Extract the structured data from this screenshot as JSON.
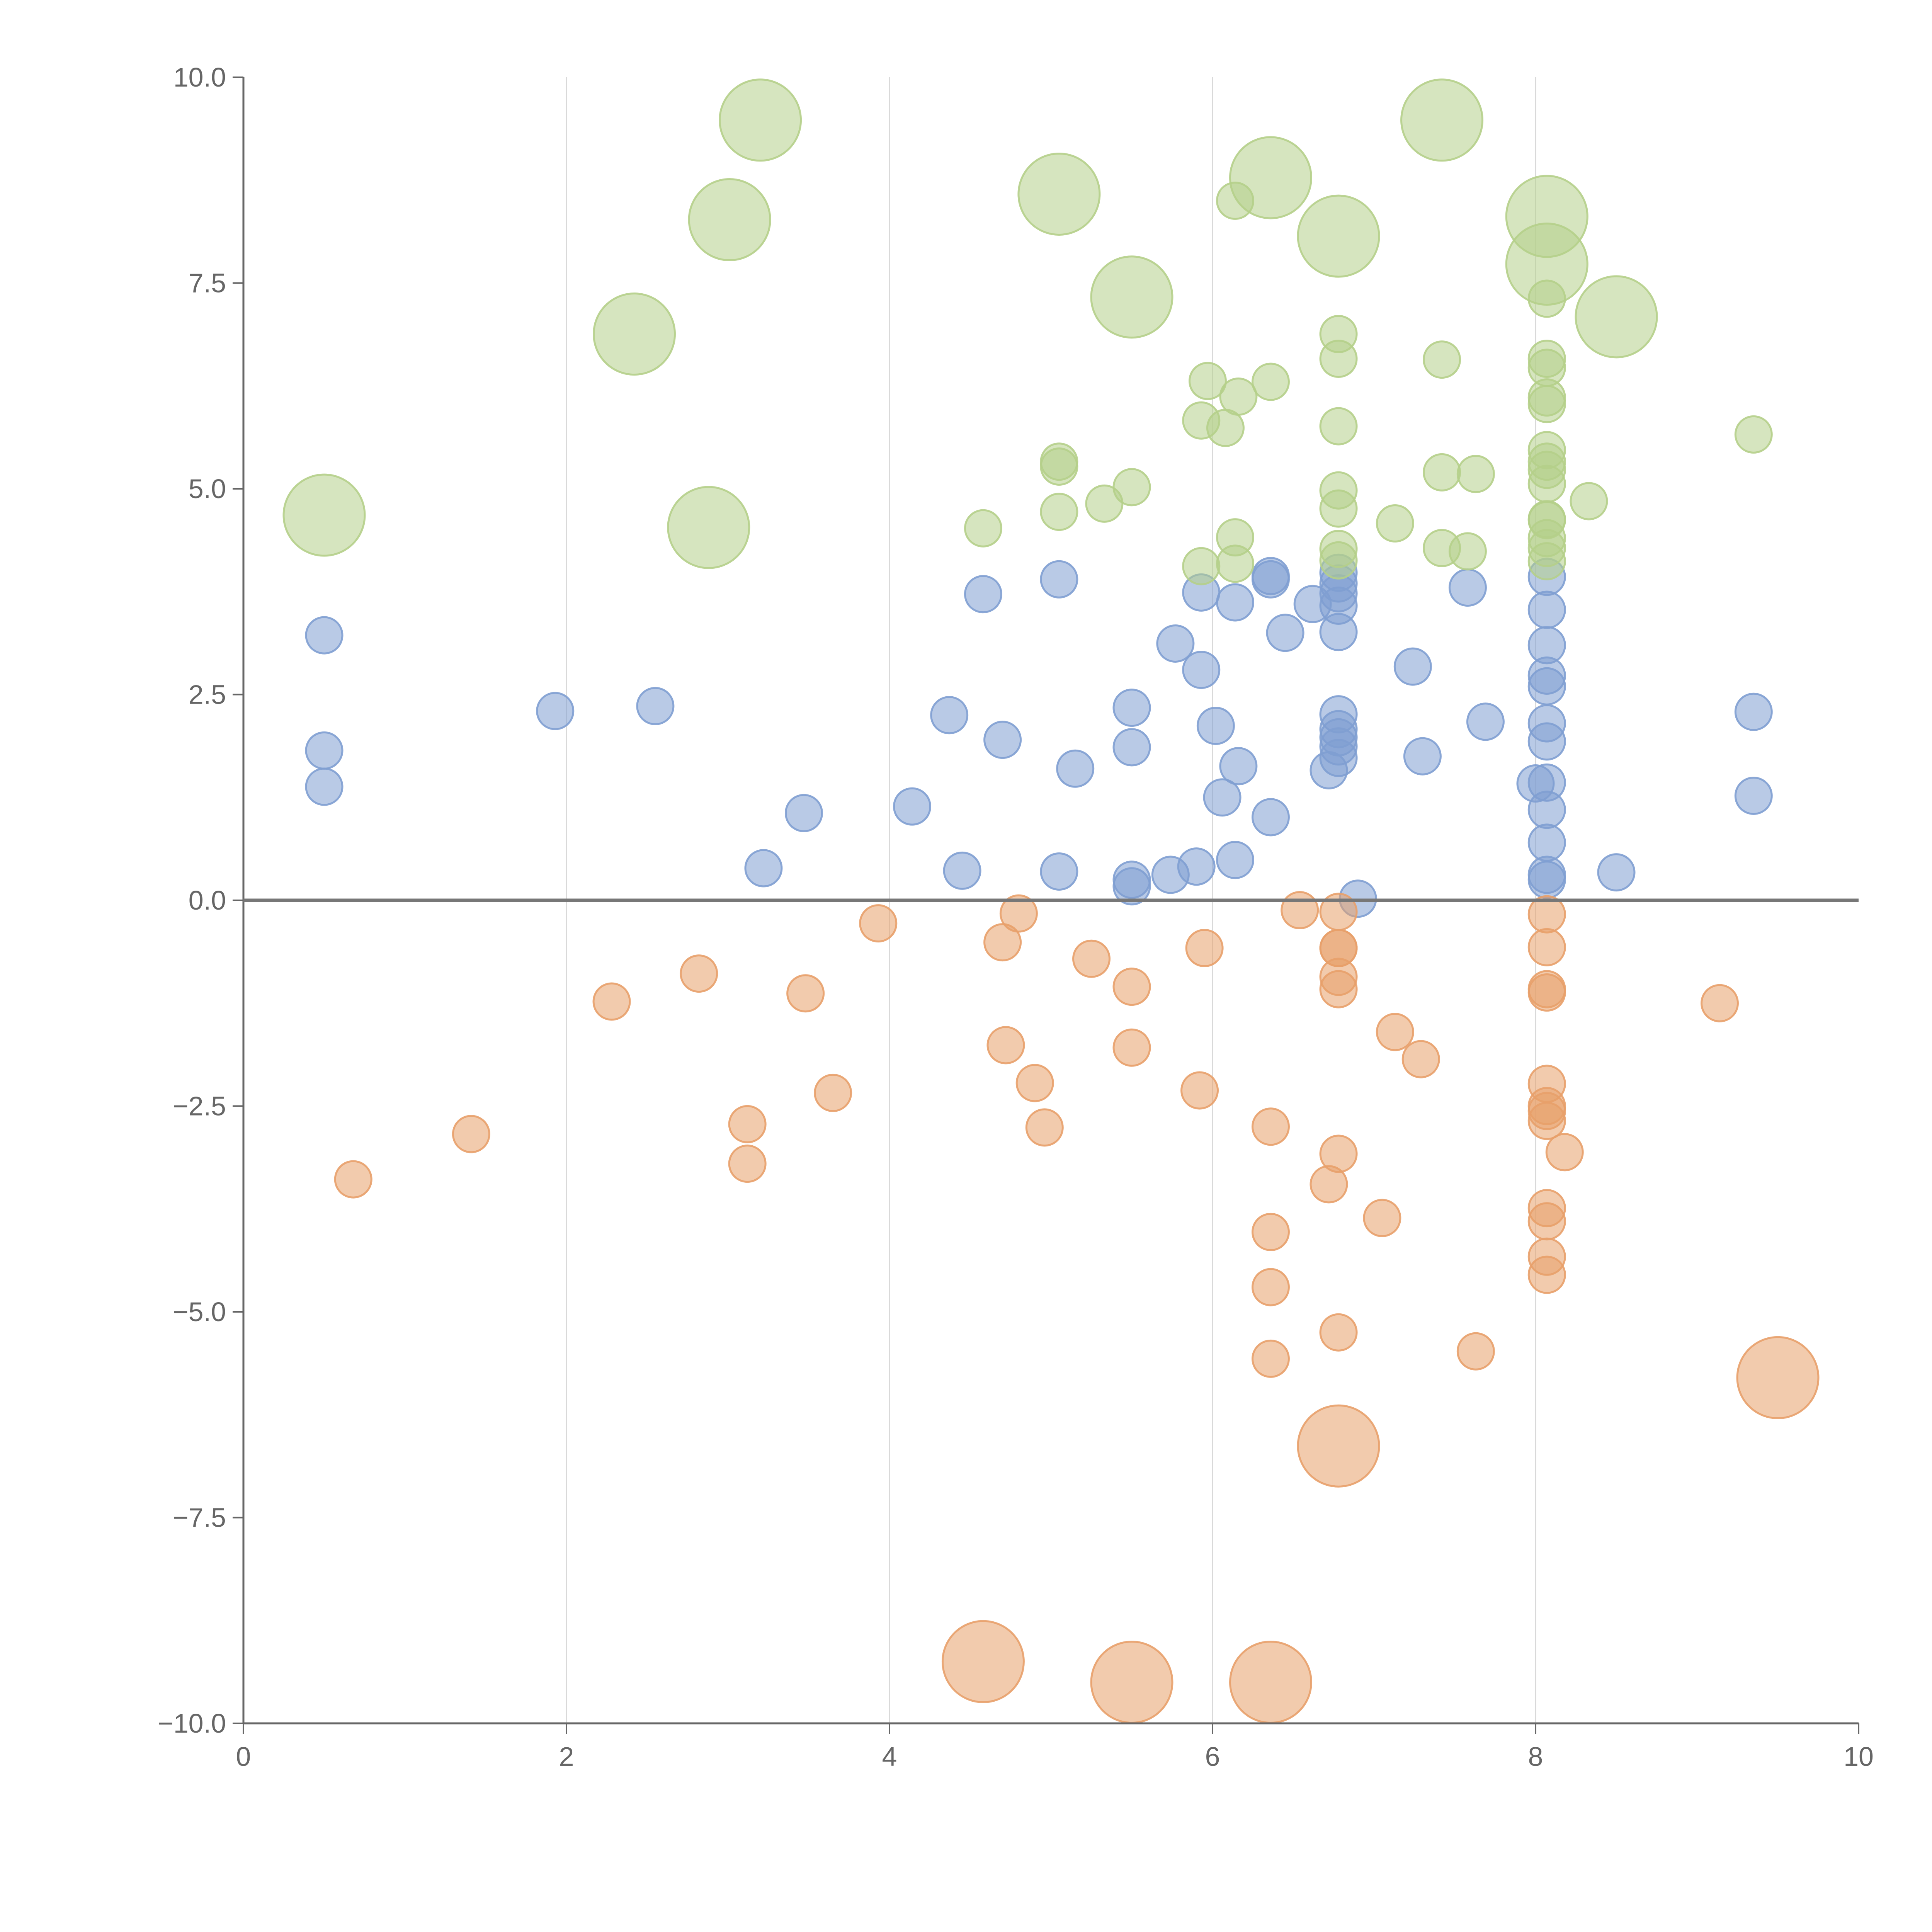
{
  "chart_data": {
    "type": "scatter",
    "title": "",
    "xlabel": "",
    "ylabel": "",
    "xlim": [
      0,
      10
    ],
    "ylim": [
      -10,
      10
    ],
    "x_ticks": [
      "0",
      "2",
      "4",
      "6",
      "8",
      "10"
    ],
    "y_ticks": [
      "10.0",
      "7.5",
      "5.0",
      "2.5",
      "0.0",
      "−2.5",
      "−5.0",
      "−7.5",
      "−10.0"
    ],
    "x_grid": [
      2,
      4,
      6,
      8
    ],
    "colors": {
      "blue": "#7f9fd2",
      "orange": "#e8a06a",
      "green": "#b5cf8a",
      "axis": "#666666"
    },
    "series": [
      {
        "name": "blue",
        "color": "#7f9fd2",
        "points": [
          [
            0.5,
            3.22
          ],
          [
            0.5,
            1.82
          ],
          [
            0.5,
            1.38
          ],
          [
            1.93,
            2.3
          ],
          [
            2.55,
            2.36
          ],
          [
            3.22,
            0.39
          ],
          [
            3.47,
            1.06
          ],
          [
            4.14,
            1.14
          ],
          [
            4.37,
            2.25
          ],
          [
            4.45,
            0.36
          ],
          [
            4.58,
            3.72
          ],
          [
            4.7,
            1.95
          ],
          [
            5.05,
            3.9
          ],
          [
            5.05,
            0.35
          ],
          [
            5.15,
            1.6
          ],
          [
            5.5,
            2.34
          ],
          [
            5.5,
            1.86
          ],
          [
            5.5,
            0.25
          ],
          [
            5.5,
            0.17
          ],
          [
            5.74,
            0.31
          ],
          [
            5.77,
            3.12
          ],
          [
            5.9,
            0.41
          ],
          [
            5.93,
            3.74
          ],
          [
            5.93,
            2.8
          ],
          [
            6.02,
            2.12
          ],
          [
            6.06,
            1.25
          ],
          [
            6.14,
            3.62
          ],
          [
            6.14,
            0.49
          ],
          [
            6.16,
            1.63
          ],
          [
            6.36,
            3.94
          ],
          [
            6.36,
            3.9
          ],
          [
            6.36,
            1.01
          ],
          [
            6.45,
            3.25
          ],
          [
            6.62,
            3.6
          ],
          [
            6.72,
            1.58
          ],
          [
            6.78,
            3.98
          ],
          [
            6.78,
            3.85
          ],
          [
            6.78,
            3.73
          ],
          [
            6.78,
            3.58
          ],
          [
            6.78,
            3.26
          ],
          [
            6.78,
            2.26
          ],
          [
            6.78,
            2.08
          ],
          [
            6.78,
            1.98
          ],
          [
            6.78,
            1.87
          ],
          [
            6.78,
            1.73
          ],
          [
            6.9,
            0.02
          ],
          [
            7.24,
            2.84
          ],
          [
            7.3,
            1.75
          ],
          [
            7.58,
            3.8
          ],
          [
            7.69,
            2.17
          ],
          [
            8.0,
            1.42
          ],
          [
            8.07,
            3.93
          ],
          [
            8.07,
            3.53
          ],
          [
            8.07,
            3.1
          ],
          [
            8.07,
            2.73
          ],
          [
            8.07,
            2.6
          ],
          [
            8.07,
            2.15
          ],
          [
            8.07,
            1.93
          ],
          [
            8.07,
            1.43
          ],
          [
            8.07,
            1.1
          ],
          [
            8.07,
            0.7
          ],
          [
            8.07,
            0.31
          ],
          [
            8.07,
            0.25
          ],
          [
            8.5,
            0.34
          ],
          [
            9.35,
            2.29
          ],
          [
            9.35,
            1.27
          ]
        ]
      },
      {
        "name": "orange",
        "color": "#e8a06a",
        "points": [
          [
            0.68,
            -3.39
          ],
          [
            1.41,
            -2.84
          ],
          [
            2.28,
            -1.23
          ],
          [
            2.82,
            -0.89
          ],
          [
            3.12,
            -2.72
          ],
          [
            3.12,
            -3.2
          ],
          [
            3.48,
            -1.13
          ],
          [
            3.65,
            -2.34
          ],
          [
            3.93,
            -0.28
          ],
          [
            4.7,
            -0.51
          ],
          [
            4.72,
            -1.76
          ],
          [
            4.8,
            -0.16
          ],
          [
            4.9,
            -2.22
          ],
          [
            4.96,
            -2.76
          ],
          [
            5.25,
            -0.71
          ],
          [
            5.5,
            -1.05
          ],
          [
            5.5,
            -1.79
          ],
          [
            5.92,
            -2.31
          ],
          [
            5.95,
            -0.58
          ],
          [
            6.36,
            -2.75
          ],
          [
            6.36,
            -4.03
          ],
          [
            6.36,
            -4.7
          ],
          [
            6.36,
            -5.57
          ],
          [
            6.54,
            -0.12
          ],
          [
            6.72,
            -3.45
          ],
          [
            6.78,
            -0.14
          ],
          [
            6.78,
            -0.58
          ],
          [
            6.78,
            -0.58
          ],
          [
            6.78,
            -0.93
          ],
          [
            6.78,
            -1.08
          ],
          [
            6.78,
            -3.08
          ],
          [
            6.78,
            -5.25
          ],
          [
            7.05,
            -3.86
          ],
          [
            7.13,
            -1.6
          ],
          [
            7.29,
            -1.93
          ],
          [
            7.63,
            -5.48
          ],
          [
            8.07,
            -0.17
          ],
          [
            8.07,
            -0.57
          ],
          [
            8.07,
            -1.08
          ],
          [
            8.07,
            -1.12
          ],
          [
            8.07,
            -2.23
          ],
          [
            8.07,
            -2.5
          ],
          [
            8.07,
            -2.56
          ],
          [
            8.07,
            -2.68
          ],
          [
            8.07,
            -3.74
          ],
          [
            8.07,
            -3.9
          ],
          [
            8.07,
            -4.33
          ],
          [
            8.07,
            -4.55
          ],
          [
            8.18,
            -3.06
          ],
          [
            9.14,
            -1.25
          ]
        ],
        "large_points": [
          [
            4.58,
            -9.25
          ],
          [
            5.5,
            -9.5
          ],
          [
            6.36,
            -9.5
          ],
          [
            6.78,
            -6.63
          ],
          [
            9.5,
            -5.8
          ]
        ]
      },
      {
        "name": "green",
        "color": "#b5cf8a",
        "points": [
          [
            4.58,
            4.52
          ],
          [
            5.05,
            5.33
          ],
          [
            5.05,
            5.27
          ],
          [
            5.05,
            4.72
          ],
          [
            5.33,
            4.82
          ],
          [
            5.5,
            5.02
          ],
          [
            5.93,
            5.83
          ],
          [
            5.93,
            4.06
          ],
          [
            5.97,
            6.31
          ],
          [
            6.08,
            5.74
          ],
          [
            6.14,
            4.41
          ],
          [
            6.14,
            4.09
          ],
          [
            6.14,
            8.5
          ],
          [
            6.16,
            6.12
          ],
          [
            6.36,
            6.3
          ],
          [
            6.78,
            6.88
          ],
          [
            6.78,
            6.58
          ],
          [
            6.78,
            5.76
          ],
          [
            6.78,
            4.98
          ],
          [
            6.78,
            4.76
          ],
          [
            6.78,
            4.27
          ],
          [
            6.78,
            4.13
          ],
          [
            7.13,
            4.58
          ],
          [
            7.42,
            5.2
          ],
          [
            7.42,
            4.28
          ],
          [
            7.42,
            6.57
          ],
          [
            7.58,
            4.24
          ],
          [
            7.63,
            5.18
          ],
          [
            8.07,
            6.58
          ],
          [
            8.07,
            6.47
          ],
          [
            8.07,
            6.11
          ],
          [
            8.07,
            6.03
          ],
          [
            8.07,
            5.47
          ],
          [
            8.07,
            5.33
          ],
          [
            8.07,
            5.23
          ],
          [
            8.07,
            5.06
          ],
          [
            8.07,
            4.63
          ],
          [
            8.07,
            4.62
          ],
          [
            8.07,
            4.4
          ],
          [
            8.07,
            4.28
          ],
          [
            8.07,
            4.12
          ],
          [
            8.07,
            7.31
          ],
          [
            8.33,
            4.85
          ],
          [
            9.35,
            5.66
          ]
        ],
        "large_points": [
          [
            0.5,
            4.68
          ],
          [
            2.42,
            6.88
          ],
          [
            2.88,
            4.53
          ],
          [
            3.01,
            8.27
          ],
          [
            3.2,
            9.48
          ],
          [
            5.05,
            8.58
          ],
          [
            5.5,
            7.33
          ],
          [
            6.36,
            8.78
          ],
          [
            6.78,
            8.07
          ],
          [
            7.42,
            9.48
          ],
          [
            8.07,
            8.31
          ],
          [
            8.07,
            7.73
          ],
          [
            8.5,
            7.09
          ]
        ]
      }
    ]
  }
}
